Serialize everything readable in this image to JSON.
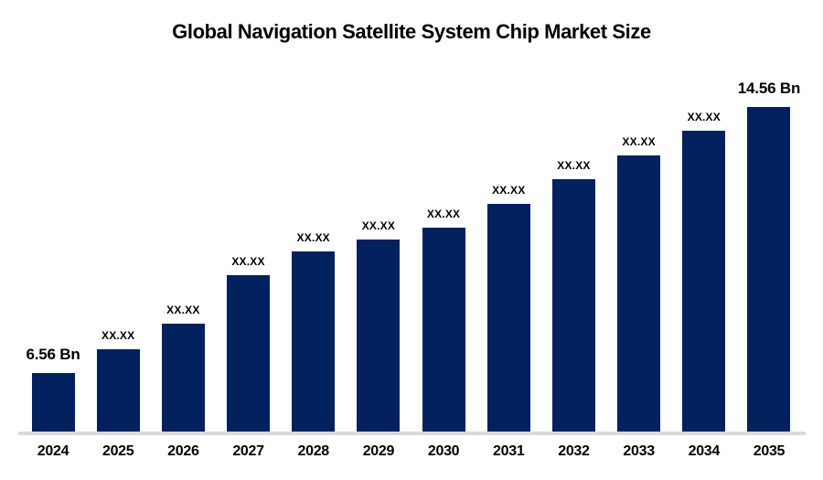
{
  "chart_data": {
    "type": "bar",
    "title": "Global Navigation Satellite System Chip Market Size",
    "categories": [
      "2024",
      "2025",
      "2026",
      "2027",
      "2028",
      "2029",
      "2030",
      "2031",
      "2032",
      "2033",
      "2034",
      "2035"
    ],
    "values": [
      6.56,
      7.27,
      8.04,
      9.5,
      10.22,
      10.57,
      10.93,
      11.65,
      12.39,
      13.1,
      13.85,
      14.56
    ],
    "value_labels": [
      "6.56 Bn",
      "XX.XX",
      "XX.XX",
      "XX.XX",
      "XX.XX",
      "XX.XX",
      "XX.XX",
      "XX.XX",
      "XX.XX",
      "XX.XX",
      "XX.XX",
      "14.56 Bn"
    ],
    "emphasized_labels": [
      "6.56 Bn",
      "14.56 Bn"
    ],
    "xlabel": "",
    "ylabel": "",
    "y_axis_visible": false,
    "grid": false,
    "legend": false,
    "ylim": [
      4.76,
      15.5
    ],
    "bar_color": "#02215e",
    "axis_line_color": "#d9d9d9",
    "text_color": "#000000",
    "background_color": "#ffffff"
  }
}
